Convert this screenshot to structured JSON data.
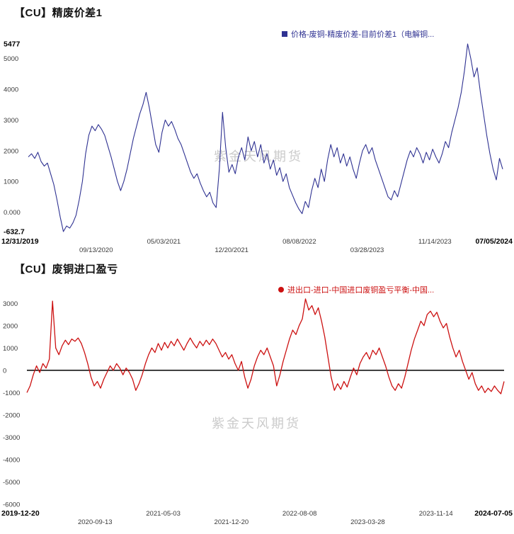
{
  "watermark": "紫金天风期货",
  "chart_data": [
    {
      "type": "line",
      "title": "【CU】精废价差1",
      "legend": "价格-废铜-精废价差-目前价差1（电解铜...",
      "legend_marker": "square",
      "line_color": "#2f3292",
      "x_tick_labels": [
        "12/31/2019",
        "09/13/2020",
        "05/03/2021",
        "12/20/2021",
        "08/08/2022",
        "03/28/2023",
        "11/14/2023",
        "07/05/2024"
      ],
      "y_tick_labels": [
        "5477",
        "5000",
        "4000",
        "3000",
        "2000",
        "1000",
        "0.000",
        "-632.7"
      ],
      "y_tick_values": [
        5477,
        5000,
        4000,
        3000,
        2000,
        1000,
        0,
        -632.7
      ],
      "ylim": [
        -632.7,
        5477
      ],
      "zero_line": false,
      "bold_y_extremes": true,
      "values": [
        1800,
        1900,
        1750,
        1950,
        1650,
        1500,
        1600,
        1250,
        900,
        400,
        -150,
        -633,
        -450,
        -520,
        -350,
        -100,
        400,
        1000,
        1900,
        2500,
        2800,
        2650,
        2850,
        2700,
        2500,
        2150,
        1800,
        1400,
        1000,
        700,
        1000,
        1400,
        1900,
        2400,
        2800,
        3200,
        3500,
        3900,
        3400,
        2800,
        2200,
        1950,
        2600,
        3000,
        2800,
        2950,
        2700,
        2400,
        2200,
        1900,
        1600,
        1300,
        1100,
        1250,
        950,
        700,
        500,
        650,
        300,
        150,
        1400,
        3250,
        2100,
        1300,
        1550,
        1250,
        1800,
        2100,
        1700,
        2450,
        2000,
        2300,
        1800,
        2200,
        1600,
        1900,
        1400,
        1700,
        1200,
        1450,
        1000,
        1250,
        800,
        550,
        300,
        100,
        -50,
        350,
        150,
        700,
        1100,
        800,
        1400,
        1000,
        1700,
        2200,
        1800,
        2100,
        1600,
        1900,
        1500,
        1800,
        1400,
        1100,
        1600,
        2000,
        2200,
        1900,
        2100,
        1700,
        1400,
        1100,
        800,
        500,
        400,
        700,
        500,
        900,
        1300,
        1700,
        2000,
        1800,
        2100,
        1900,
        1600,
        1950,
        1700,
        2050,
        1800,
        1600,
        1900,
        2300,
        2100,
        2600,
        3000,
        3400,
        3900,
        4600,
        5477,
        5000,
        4400,
        4700,
        3900,
        3200,
        2500,
        1900,
        1400,
        1050,
        1750,
        1400
      ]
    },
    {
      "type": "line",
      "title": "【CU】废铜进口盈亏",
      "legend": "进出口-进口-中国进口废铜盈亏平衡-中国...",
      "legend_marker": "circle",
      "line_color": "#cc1111",
      "x_tick_labels": [
        "2019-12-20",
        "2020-09-13",
        "2021-05-03",
        "2021-12-20",
        "2022-08-08",
        "2023-03-28",
        "2023-11-14",
        "2024-07-05"
      ],
      "y_tick_labels": [
        "3000",
        "2000",
        "1000",
        "0",
        "-1000",
        "-2000",
        "-3000",
        "-4000",
        "-5000",
        "-6000"
      ],
      "y_tick_values": [
        3000,
        2000,
        1000,
        0,
        -1000,
        -2000,
        -3000,
        -4000,
        -5000,
        -6000
      ],
      "ylim": [
        -6000,
        3200
      ],
      "zero_line": true,
      "bold_y_extremes": false,
      "values": [
        -1000,
        -700,
        -200,
        200,
        -100,
        300,
        100,
        500,
        3100,
        1000,
        700,
        1100,
        1350,
        1150,
        1400,
        1300,
        1450,
        1200,
        800,
        300,
        -300,
        -700,
        -500,
        -800,
        -400,
        -100,
        200,
        0,
        300,
        100,
        -200,
        100,
        -100,
        -400,
        -900,
        -600,
        -200,
        300,
        700,
        1000,
        800,
        1200,
        900,
        1250,
        1000,
        1300,
        1100,
        1400,
        1150,
        900,
        1200,
        1450,
        1200,
        1000,
        1300,
        1100,
        1350,
        1150,
        1400,
        1200,
        900,
        600,
        800,
        500,
        700,
        300,
        0,
        400,
        -300,
        -800,
        -400,
        200,
        600,
        900,
        700,
        1000,
        600,
        200,
        -700,
        -200,
        400,
        900,
        1400,
        1800,
        1600,
        2000,
        2300,
        3200,
        2700,
        2900,
        2500,
        2800,
        2200,
        1500,
        600,
        -300,
        -900,
        -600,
        -850,
        -500,
        -750,
        -300,
        100,
        -200,
        300,
        600,
        800,
        500,
        900,
        700,
        1000,
        600,
        200,
        -300,
        -700,
        -900,
        -600,
        -800,
        -300,
        300,
        900,
        1400,
        1800,
        2200,
        2000,
        2500,
        2650,
        2400,
        2600,
        2200,
        1900,
        2100,
        1500,
        1000,
        600,
        900,
        400,
        0,
        -400,
        -100,
        -600,
        -900,
        -700,
        -1000,
        -800,
        -950,
        -700,
        -900,
        -1050,
        -500
      ]
    }
  ]
}
